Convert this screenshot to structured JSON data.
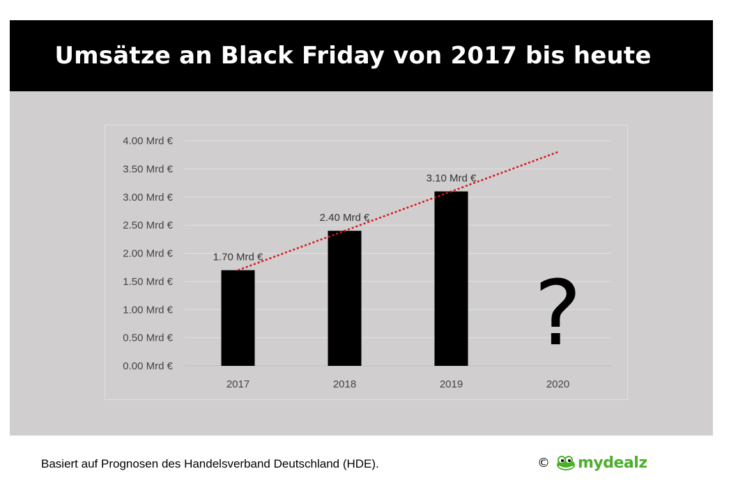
{
  "title": "Umsätze an Black Friday von 2017 bis heute",
  "footer": {
    "note": "Basiert auf Prognosen des Handelsverband Deutschland (HDE).",
    "copyright_symbol": "©",
    "brand_name": "mydealz",
    "brand_icon": "crocodile-icon"
  },
  "colors": {
    "title_bg": "#000000",
    "panel_bg": "#d0cecf",
    "bar": "#000000",
    "trend": "#d9141c",
    "brand": "#4caf2a"
  },
  "chart_data": {
    "type": "bar",
    "categories": [
      "2017",
      "2018",
      "2019",
      "2020"
    ],
    "series": [
      {
        "values": [
          1.7,
          2.4,
          3.1,
          null
        ],
        "data_labels": [
          "1.70 Mrd €",
          "2.40 Mrd €",
          "3.10 Mrd €",
          ""
        ]
      }
    ],
    "unknown_marker": {
      "category": "2020",
      "text": "?"
    },
    "trendline": {
      "style": "dotted",
      "color": "#d9141c",
      "from": {
        "x": "2017",
        "y": 1.7
      },
      "to": {
        "x": "2020",
        "y": 3.8
      }
    },
    "ylim": [
      0,
      4
    ],
    "yticks": [
      0,
      0.5,
      1,
      1.5,
      2,
      2.5,
      3,
      3.5,
      4
    ],
    "ytick_labels": [
      "0.00 Mrd €",
      "0.50 Mrd €",
      "1.00 Mrd €",
      "1.50 Mrd €",
      "2.00 Mrd €",
      "2.50 Mrd €",
      "3.00 Mrd €",
      "3.50 Mrd €",
      "4.00 Mrd €"
    ],
    "grid": true,
    "xlabel": "",
    "ylabel": ""
  }
}
